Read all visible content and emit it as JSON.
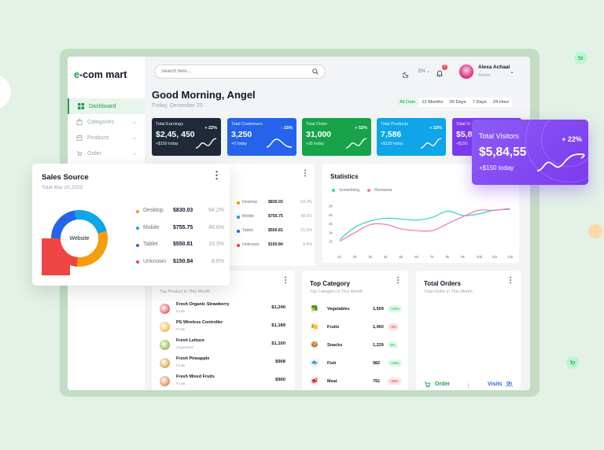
{
  "logo": {
    "prefix": "e",
    "rest": "-com mart"
  },
  "sidebar": {
    "items": [
      {
        "label": "Dashboard",
        "icon": "grid-icon",
        "active": true
      },
      {
        "label": "Categories",
        "icon": "bag-icon",
        "chevron": true
      },
      {
        "label": "Products",
        "icon": "box-icon",
        "chevron": true
      },
      {
        "label": "Order",
        "icon": "cart-icon",
        "chevron": true
      }
    ]
  },
  "topbar": {
    "search_placeholder": "Search here...",
    "lang": "EN",
    "notif_count": "2",
    "user_name": "Alexa Achaal",
    "user_role": "Admin"
  },
  "greeting": "Good Morning, Angel",
  "date": "Friday, December 25",
  "filters": [
    "All Date",
    "12 Months",
    "30 Days",
    "7 Days",
    "24 Hour"
  ],
  "stats": [
    {
      "label": "Total Earnings",
      "value": "$2,45, 450",
      "pct": "+ 22%",
      "sub": "+$150 today",
      "color": "#1f2937",
      "trend": "up"
    },
    {
      "label": "Total Customers",
      "value": "3,250",
      "pct": "- 15%",
      "sub": "+0 today",
      "color": "#2563eb",
      "trend": "down"
    },
    {
      "label": "Total Order",
      "value": "31,000",
      "pct": "+ 52%",
      "sub": "+35 today",
      "color": "#16a34a",
      "trend": "up"
    },
    {
      "label": "Total Products",
      "value": "7,586",
      "pct": "+ 22%",
      "sub": "+$150 today",
      "color": "#0ea5e9",
      "trend": "up"
    },
    {
      "label": "Total Vi",
      "value": "$5,8",
      "pct": "",
      "sub": "+$150",
      "color": "#7c3aed",
      "trend": "up"
    }
  ],
  "total_visitors": {
    "label": "Total Visitors",
    "value": "$5,84,55",
    "pct": "+ 22%",
    "sub": "+$150 today"
  },
  "sales_source": {
    "title": "Sales Source",
    "subtitle": "Total Mar 20,2023",
    "center": "Website",
    "rows": [
      {
        "name": "Desktop",
        "value": "$830.03",
        "pct": "64.2%",
        "color": "#f59e0b"
      },
      {
        "name": "Mobile",
        "value": "$755.75",
        "pct": "48.6%",
        "color": "#0ea5e9"
      },
      {
        "name": "Tablet",
        "value": "$550.81",
        "pct": "15.3%",
        "color": "#2563eb"
      },
      {
        "name": "Unknown",
        "value": "$150.84",
        "pct": "8.6%",
        "color": "#ef4444"
      }
    ]
  },
  "bg_sales_rows": [
    {
      "name": "Desktop",
      "value": "$830.03",
      "pct": "64.2%",
      "color": "#f59e0b"
    },
    {
      "name": "Mobile",
      "value": "$755.75",
      "pct": "48.6%",
      "color": "#0ea5e9"
    },
    {
      "name": "Tablet",
      "value": "$550.81",
      "pct": "15.3%",
      "color": "#2563eb"
    },
    {
      "name": "Unknown",
      "value": "$150.84",
      "pct": "8.6%",
      "color": "#ef4444"
    }
  ],
  "statistics": {
    "title": "Statistics",
    "legend": [
      "Something",
      "Romania"
    ]
  },
  "chart_data": {
    "type": "line",
    "title": "Statistics",
    "x": [
      "1k",
      "2k",
      "3k",
      "4k",
      "5k",
      "6k",
      "7k",
      "8k",
      "9k",
      "10k",
      "11k",
      "12k"
    ],
    "yticks": [
      "5k",
      "4k",
      "3k",
      "2k",
      "1k"
    ],
    "ylim": [
      0,
      5.5
    ],
    "series": [
      {
        "name": "Something",
        "color": "#2dd4bf",
        "values": [
          1.2,
          2.6,
          3.3,
          3.6,
          3.5,
          3.4,
          3.7,
          4.4,
          3.9,
          4.1,
          4.5,
          4.6
        ]
      },
      {
        "name": "Romania",
        "color": "#f472b6",
        "values": [
          1.0,
          2.0,
          2.9,
          2.9,
          2.4,
          2.2,
          2.2,
          3.0,
          3.8,
          4.5,
          4.5,
          4.7
        ]
      }
    ]
  },
  "top_product": {
    "title": "Top Product",
    "subtitle": "Top Product in This Month",
    "rows": [
      {
        "name": "Fresh Organic Strawberry",
        "cat": "Fruits",
        "price": "$1,240",
        "color": "#dc2626"
      },
      {
        "name": "PS Wireless Controller",
        "cat": "Fruits",
        "price": "$1,189",
        "color": "#f59e0b"
      },
      {
        "name": "Fresh Lettuce",
        "cat": "Vegetables",
        "price": "$1,100",
        "color": "#65a30d"
      },
      {
        "name": "Fresh Pineapple",
        "cat": "Fruits",
        "price": "$908",
        "color": "#ca8a04"
      },
      {
        "name": "Fresh Mixed Fruits",
        "cat": "Fruits",
        "price": "$900",
        "color": "#ea580c"
      }
    ]
  },
  "top_category": {
    "title": "Top Category",
    "subtitle": "Top Category in This Month",
    "rows": [
      {
        "name": "Vegetables",
        "num": "1,509",
        "pct": "+10%",
        "up": true,
        "emoji": "🥦"
      },
      {
        "name": "Fruits",
        "num": "1,460",
        "pct": "-5%",
        "up": false,
        "emoji": "🍋"
      },
      {
        "name": "Snacks",
        "num": "1,229",
        "pct": "0%",
        "up": true,
        "emoji": "🍪"
      },
      {
        "name": "Fish",
        "num": "982",
        "pct": "+19%",
        "up": true,
        "emoji": "🐟"
      },
      {
        "name": "Meat",
        "num": "791",
        "pct": "-20%",
        "up": false,
        "emoji": "🥩"
      }
    ]
  },
  "total_orders": {
    "title": "Total Orders",
    "subtitle": "Total Order in This Month",
    "order_label": "Order",
    "visits_label": "Visits"
  }
}
